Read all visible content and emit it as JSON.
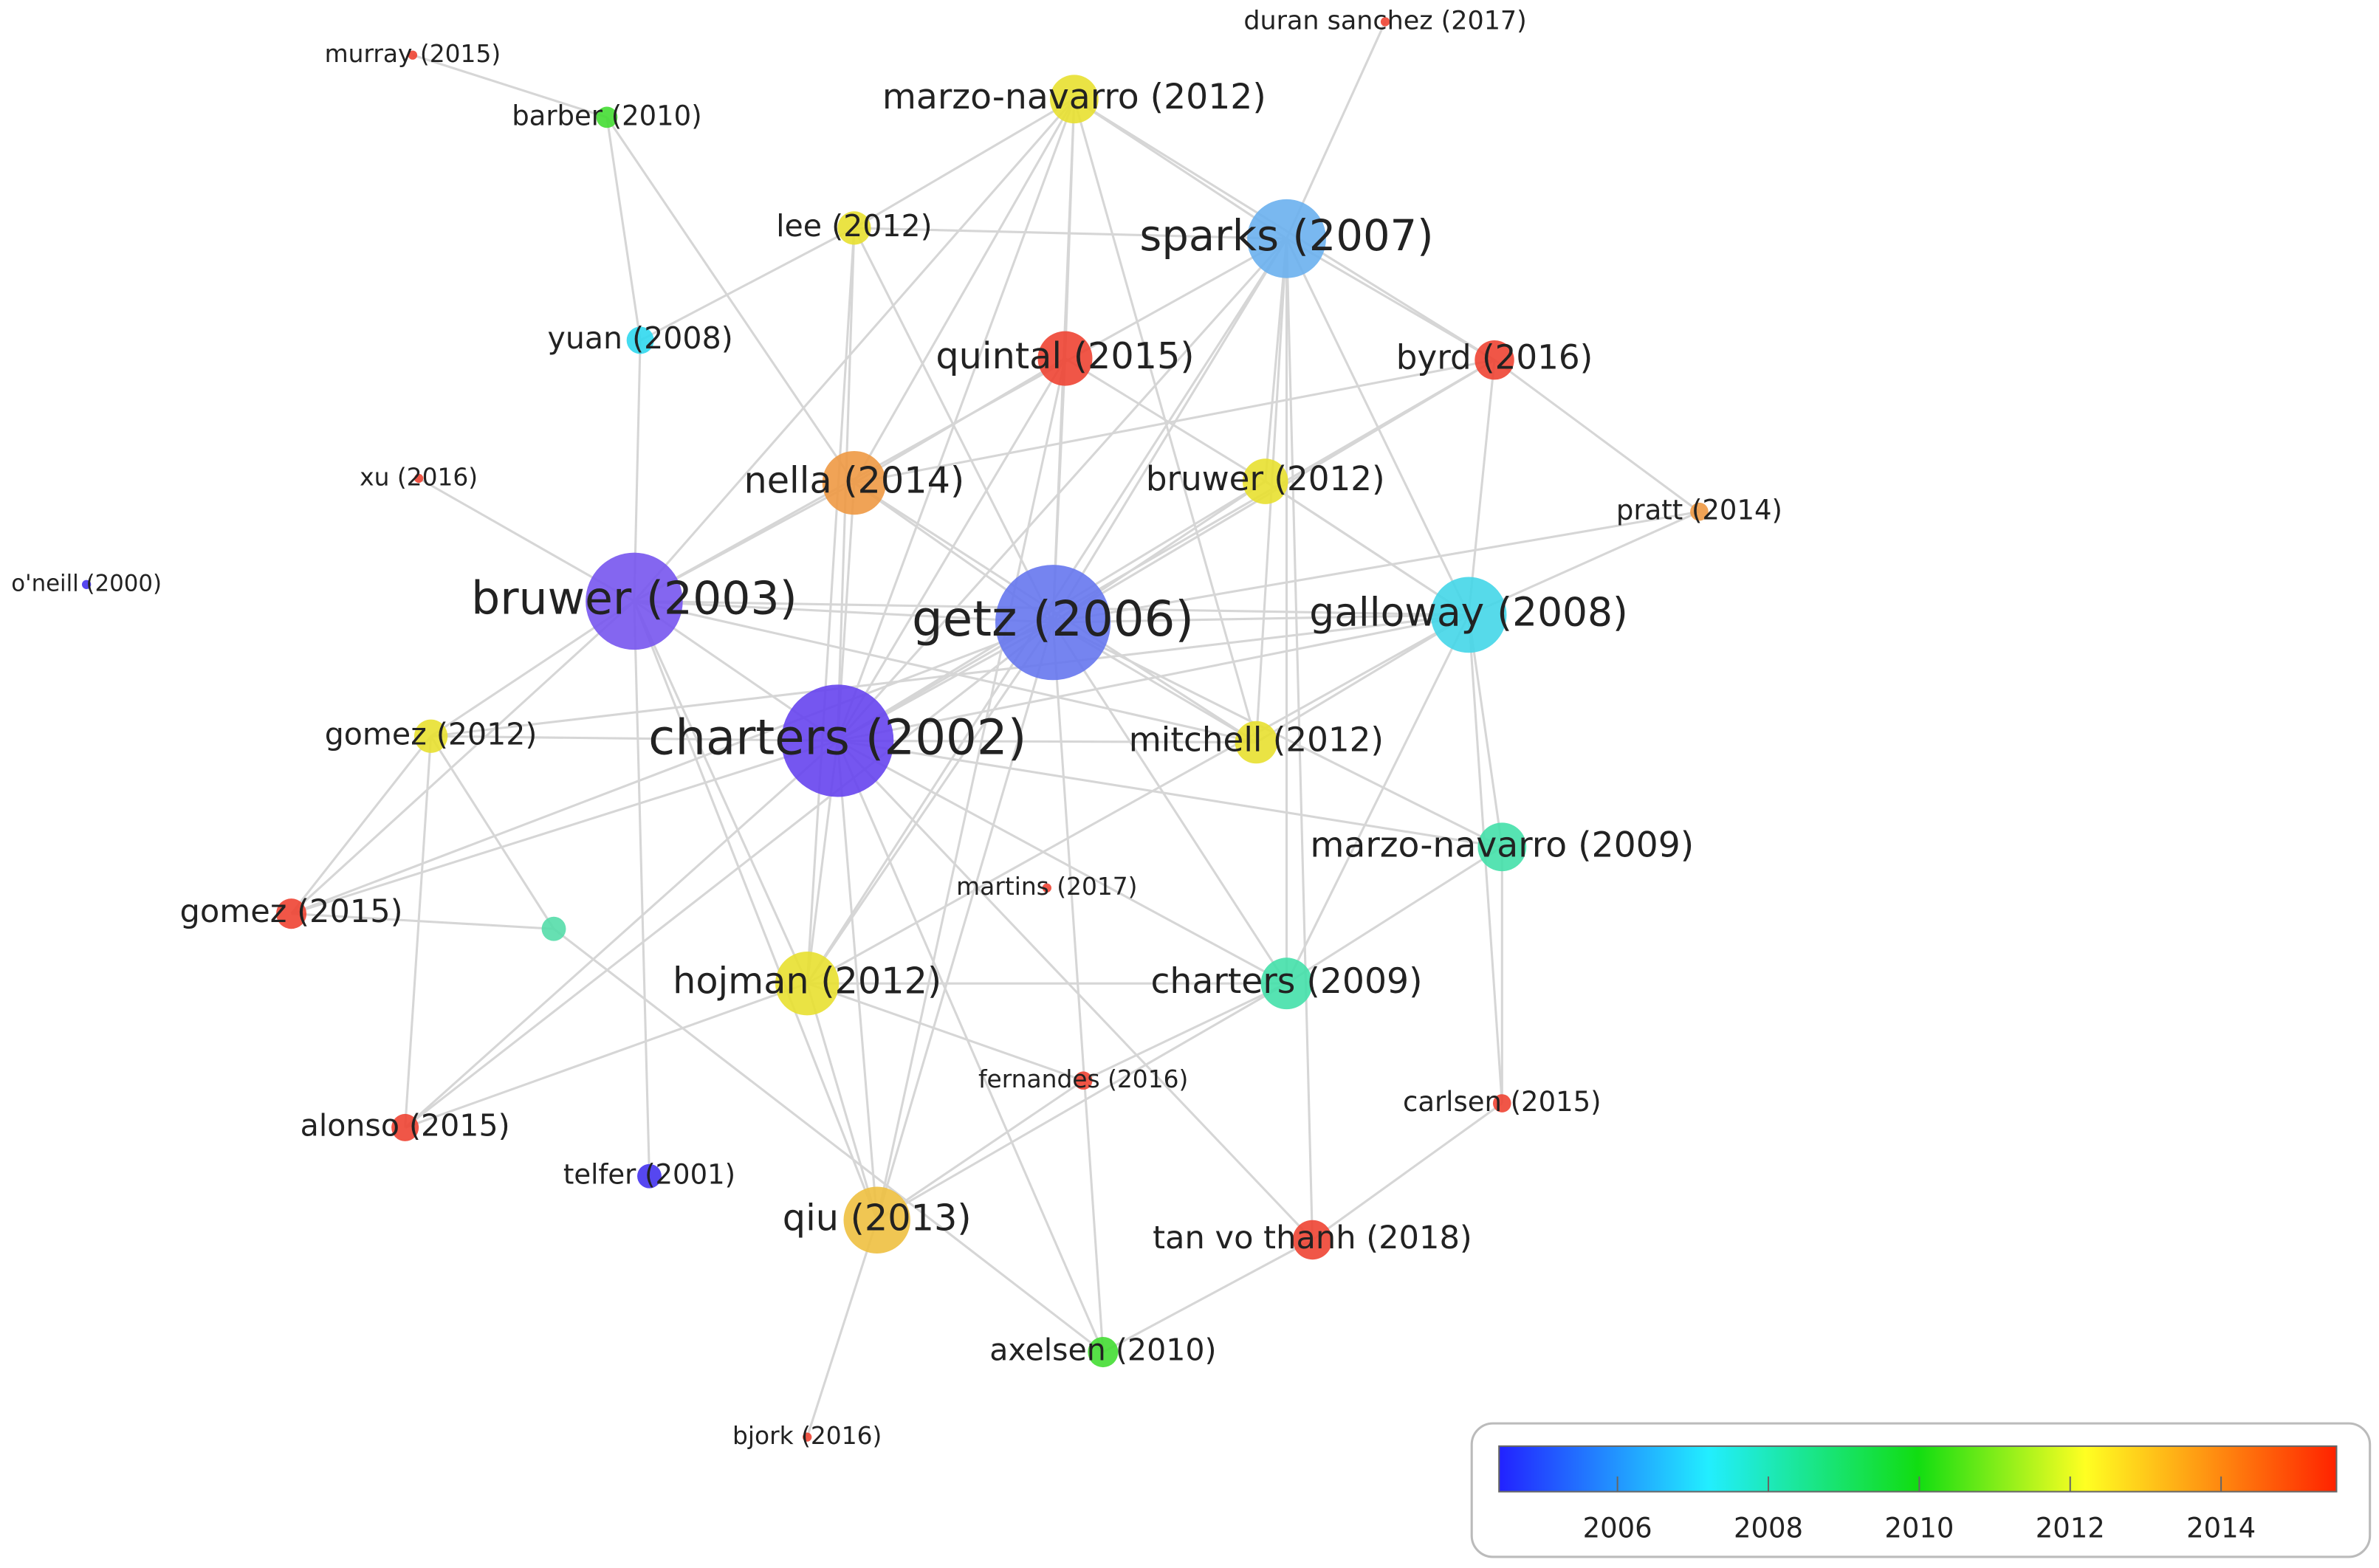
{
  "nodes": [
    {
      "label": "murray (2015)",
      "color": "#ee4433"
    },
    {
      "label": "barber (2010)",
      "color": "#44dd33"
    },
    {
      "label": "marzo-navarro (2012)",
      "color": "#e8e030"
    },
    {
      "label": "duran sanchez (2017)",
      "color": "#ee4433"
    },
    {
      "label": "lee (2012)",
      "color": "#e8e030"
    },
    {
      "label": "sparks (2007)",
      "color": "#6ab0ee"
    },
    {
      "label": "yuan (2008)",
      "color": "#30d8ee"
    },
    {
      "label": "quintal (2015)",
      "color": "#ee4433"
    },
    {
      "label": "byrd (2016)",
      "color": "#ee4433"
    },
    {
      "label": "xu (2016)",
      "color": "#ee4433"
    },
    {
      "label": "nella (2014)",
      "color": "#ee9944"
    },
    {
      "label": "bruwer (2012)",
      "color": "#e8e030"
    },
    {
      "label": "pratt (2014)",
      "color": "#ee9944"
    },
    {
      "label": "o'neill (2000)",
      "color": "#4433ee"
    },
    {
      "label": "bruwer (2003)",
      "color": "#7755ee"
    },
    {
      "label": "getz (2006)",
      "color": "#6677ee"
    },
    {
      "label": "galloway (2008)",
      "color": "#44d6e8"
    },
    {
      "label": "gomez (2012)",
      "color": "#e8e030"
    },
    {
      "label": "charters (2002)",
      "color": "#6644ee"
    },
    {
      "label": "mitchell (2012)",
      "color": "#e8e030"
    },
    {
      "label": "marzo-navarro (2009)",
      "color": "#44e0aa"
    },
    {
      "label": "gomez (2015)",
      "color": "#ee4433"
    },
    {
      "label": null,
      "color": "#55ddaa"
    },
    {
      "label": "martins (2017)",
      "color": "#ee4433"
    },
    {
      "label": "hojman (2012)",
      "color": "#e8e030"
    },
    {
      "label": "charters (2009)",
      "color": "#44e0aa"
    },
    {
      "label": "fernandes (2016)",
      "color": "#ee4433"
    },
    {
      "label": "carlsen (2015)",
      "color": "#ee4433"
    },
    {
      "label": "alonso (2015)",
      "color": "#ee4433"
    },
    {
      "label": "telfer (2001)",
      "color": "#4433ee"
    },
    {
      "label": "qiu (2013)",
      "color": "#eec040"
    },
    {
      "label": "tan vo thanh (2018)",
      "color": "#ee4433"
    },
    {
      "label": "axelsen (2010)",
      "color": "#44dd33"
    },
    {
      "label": "bjork (2016)",
      "color": "#ee4433"
    }
  ],
  "colorbar": {
    "range": [
      2004.43,
      2015.53
    ],
    "ticks": [
      2006,
      2008,
      2010,
      2012,
      2014
    ]
  }
}
